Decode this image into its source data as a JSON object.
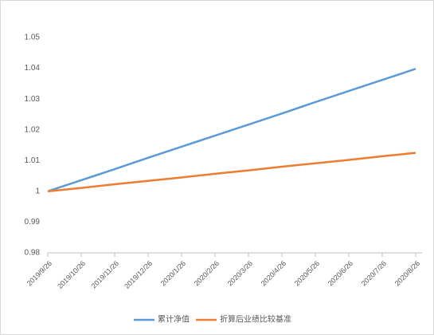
{
  "chart_data": {
    "type": "line",
    "categories": [
      "2019/9/26",
      "2019/10/26",
      "2019/11/26",
      "2019/12/26",
      "2020/1/26",
      "2020/2/26",
      "2020/3/26",
      "2020/4/26",
      "2020/5/26",
      "2020/6/26",
      "2020/7/26",
      "2020/8/26"
    ],
    "series": [
      {
        "name": "累计净值",
        "color": "#5b9bd5",
        "values": [
          1,
          1.0036,
          1.0072,
          1.0109,
          1.0145,
          1.0181,
          1.0217,
          1.0253,
          1.029,
          1.0326,
          1.0362,
          1.0398
        ]
      },
      {
        "name": "折算后业绩比较基准",
        "color": "#ed7d31",
        "values": [
          1,
          1.0011,
          1.0023,
          1.0034,
          1.0045,
          1.0057,
          1.0068,
          1.008,
          1.0091,
          1.0102,
          1.0114,
          1.0125
        ]
      }
    ],
    "ylim": [
      0.98,
      1.05
    ],
    "yticks": [
      0.98,
      0.99,
      1,
      1.01,
      1.02,
      1.03,
      1.04,
      1.05
    ],
    "grid": false,
    "legend": "bottom"
  }
}
